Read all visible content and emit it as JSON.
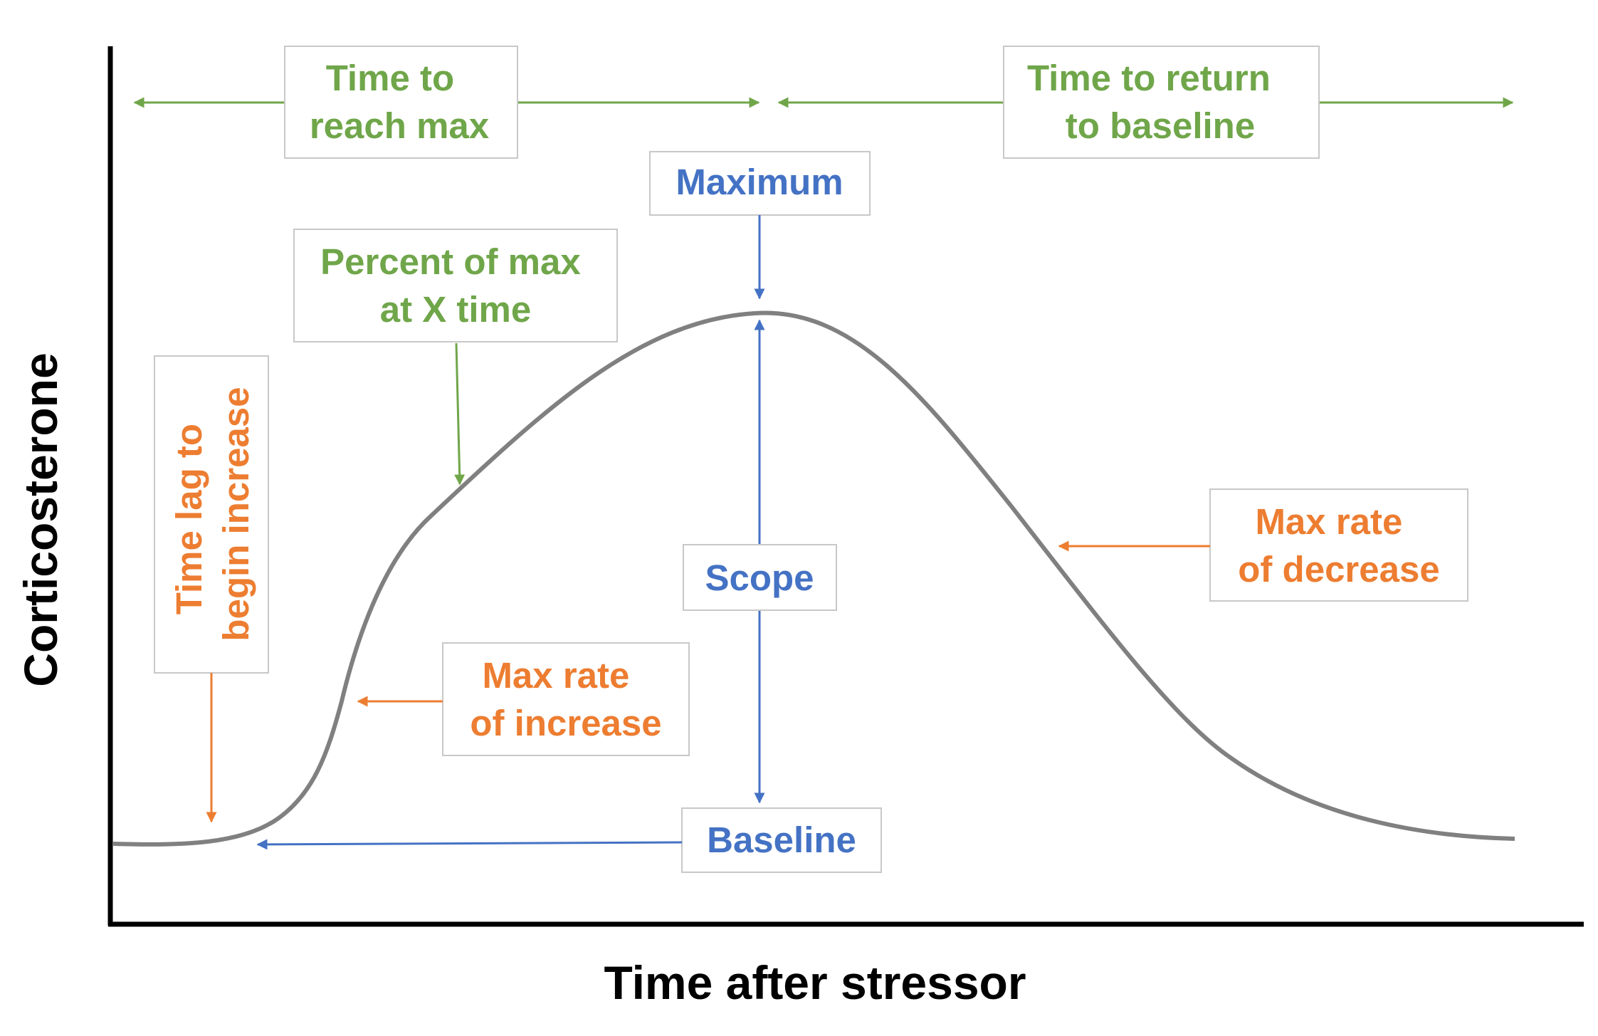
{
  "axes": {
    "x_label": "Time after stressor",
    "y_label": "Corticosterone"
  },
  "annotations": {
    "time_to_reach_max": [
      "Time to",
      "reach max"
    ],
    "time_to_return_to_baseline": [
      "Time to return",
      "to baseline"
    ],
    "maximum": "Maximum",
    "percent_of_max": [
      "Percent of max",
      "at X time"
    ],
    "time_lag": [
      "Time lag to",
      "begin increase"
    ],
    "scope": "Scope",
    "max_rate_of_increase": [
      "Max rate",
      "of increase"
    ],
    "max_rate_of_decrease": [
      "Max rate",
      "of decrease"
    ],
    "baseline": "Baseline"
  },
  "colors": {
    "green": "#70a64a",
    "blue": "#4472c4",
    "orange": "#ed7d31",
    "curve": "#808080",
    "axis": "#000000"
  }
}
